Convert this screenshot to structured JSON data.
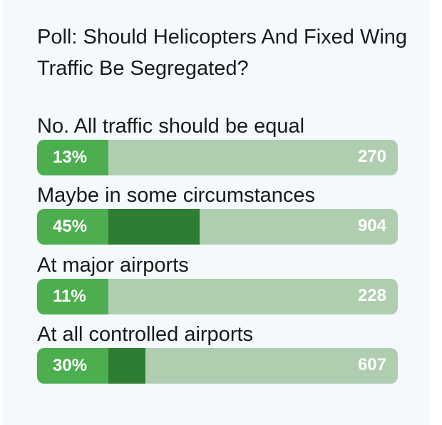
{
  "poll": {
    "title": "Poll: Should Helicopters And Fixed Wing Traffic Be Segregated?",
    "options": [
      {
        "label": "No. All traffic should be equal",
        "percent_label": "13%",
        "percent": 13,
        "votes": "270"
      },
      {
        "label": "Maybe in some circumstances",
        "percent_label": "45%",
        "percent": 45,
        "votes": "904"
      },
      {
        "label": "At major airports",
        "percent_label": "11%",
        "percent": 11,
        "votes": "228"
      },
      {
        "label": "At all controlled airports",
        "percent_label": "30%",
        "percent": 30,
        "votes": "607"
      }
    ]
  },
  "colors": {
    "card_background": "#f4f9fc",
    "bar_track": "#afceb0",
    "bar_head": "#4cae4f",
    "bar_fill": "#2e7d32",
    "bar_text": "#ffffff",
    "text": "#1a1a1a"
  }
}
